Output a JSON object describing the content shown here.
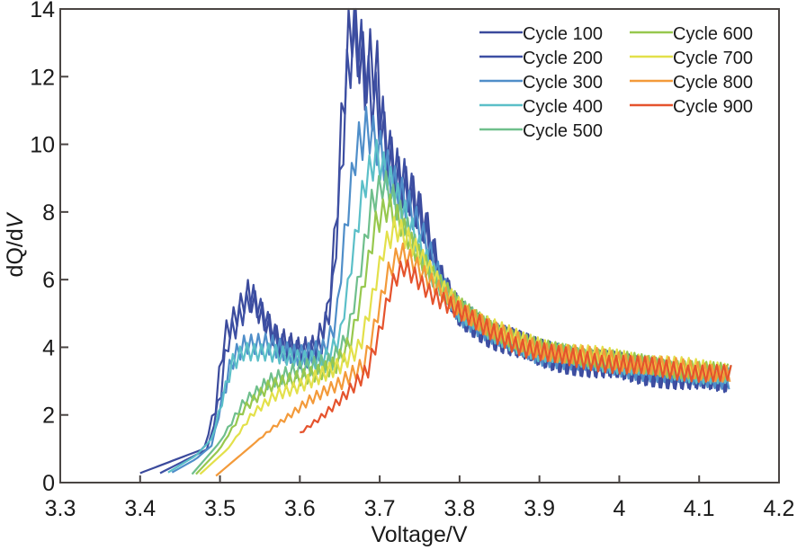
{
  "chart_data": {
    "type": "line",
    "title": "",
    "xlabel": "Voltage/V",
    "ylabel_prefix": "dQ/d",
    "ylabel_italic": "V",
    "xlim": [
      3.3,
      4.2
    ],
    "ylim": [
      0,
      14
    ],
    "xticks": [
      3.3,
      3.4,
      3.5,
      3.6,
      3.7,
      3.8,
      3.9,
      4.0,
      4.1,
      4.2
    ],
    "xtick_labels": [
      "3.3",
      "3.4",
      "3.5",
      "3.6",
      "3.7",
      "3.8",
      "3.9",
      "4",
      "4.1",
      "4.2"
    ],
    "yticks": [
      0,
      2,
      4,
      6,
      8,
      10,
      12,
      14
    ],
    "ytick_labels": [
      "0",
      "2",
      "4",
      "6",
      "8",
      "10",
      "12",
      "14"
    ],
    "grid": false,
    "legend_position": "top-right",
    "legend_columns": 2,
    "series": [
      {
        "name": "Cycle 100",
        "color": "#3b4a9c",
        "noise": 0.45,
        "points": [
          [
            3.4,
            0.28
          ],
          [
            3.48,
            1.0
          ],
          [
            3.495,
            2.3
          ],
          [
            3.505,
            4.4
          ],
          [
            3.52,
            5.0
          ],
          [
            3.535,
            5.6
          ],
          [
            3.55,
            5.0
          ],
          [
            3.57,
            4.2
          ],
          [
            3.6,
            3.9
          ],
          [
            3.62,
            4.1
          ],
          [
            3.635,
            5.0
          ],
          [
            3.645,
            7.5
          ],
          [
            3.655,
            11.5
          ],
          [
            3.665,
            13.6
          ],
          [
            3.68,
            12.0
          ],
          [
            3.695,
            12.4
          ],
          [
            3.705,
            10.2
          ],
          [
            3.72,
            9.2
          ],
          [
            3.74,
            8.6
          ],
          [
            3.76,
            7.4
          ],
          [
            3.78,
            5.8
          ],
          [
            3.8,
            5.0
          ],
          [
            3.84,
            4.4
          ],
          [
            3.9,
            3.8
          ],
          [
            4.0,
            3.4
          ],
          [
            4.1,
            3.05
          ],
          [
            4.14,
            3.0
          ]
        ]
      },
      {
        "name": "Cycle 200",
        "color": "#3d4fa3",
        "noise": 0.45,
        "points": [
          [
            3.425,
            0.28
          ],
          [
            3.485,
            1.0
          ],
          [
            3.5,
            2.6
          ],
          [
            3.51,
            4.3
          ],
          [
            3.525,
            4.9
          ],
          [
            3.54,
            5.5
          ],
          [
            3.555,
            4.8
          ],
          [
            3.575,
            4.0
          ],
          [
            3.605,
            3.8
          ],
          [
            3.625,
            4.0
          ],
          [
            3.64,
            5.4
          ],
          [
            3.65,
            8.5
          ],
          [
            3.66,
            12.0
          ],
          [
            3.67,
            13.2
          ],
          [
            3.685,
            11.6
          ],
          [
            3.7,
            11.0
          ],
          [
            3.715,
            9.6
          ],
          [
            3.735,
            8.8
          ],
          [
            3.755,
            7.6
          ],
          [
            3.775,
            6.0
          ],
          [
            3.8,
            5.0
          ],
          [
            3.84,
            4.4
          ],
          [
            3.9,
            3.8
          ],
          [
            4.0,
            3.4
          ],
          [
            4.1,
            3.05
          ],
          [
            4.14,
            3.0
          ]
        ]
      },
      {
        "name": "Cycle 300",
        "color": "#4f8ec9",
        "noise": 0.35,
        "points": [
          [
            3.44,
            0.3
          ],
          [
            3.47,
            0.7
          ],
          [
            3.49,
            1.1
          ],
          [
            3.5,
            2.2
          ],
          [
            3.515,
            3.6
          ],
          [
            3.53,
            4.0
          ],
          [
            3.56,
            4.1
          ],
          [
            3.6,
            3.8
          ],
          [
            3.63,
            3.9
          ],
          [
            3.645,
            4.6
          ],
          [
            3.655,
            7.0
          ],
          [
            3.67,
            9.8
          ],
          [
            3.685,
            10.6
          ],
          [
            3.7,
            10.0
          ],
          [
            3.715,
            9.0
          ],
          [
            3.735,
            8.2
          ],
          [
            3.755,
            7.2
          ],
          [
            3.78,
            5.8
          ],
          [
            3.8,
            5.0
          ],
          [
            3.84,
            4.4
          ],
          [
            3.9,
            3.8
          ],
          [
            4.0,
            3.45
          ],
          [
            4.1,
            3.1
          ],
          [
            4.14,
            3.05
          ]
        ]
      },
      {
        "name": "Cycle 400",
        "color": "#5bbfc8",
        "noise": 0.3,
        "points": [
          [
            3.435,
            0.3
          ],
          [
            3.47,
            0.8
          ],
          [
            3.49,
            1.3
          ],
          [
            3.505,
            2.6
          ],
          [
            3.515,
            3.5
          ],
          [
            3.53,
            3.9
          ],
          [
            3.56,
            3.9
          ],
          [
            3.6,
            3.6
          ],
          [
            3.63,
            3.6
          ],
          [
            3.65,
            4.3
          ],
          [
            3.665,
            6.6
          ],
          [
            3.68,
            8.8
          ],
          [
            3.695,
            9.6
          ],
          [
            3.71,
            9.0
          ],
          [
            3.73,
            8.0
          ],
          [
            3.75,
            7.0
          ],
          [
            3.78,
            5.8
          ],
          [
            3.8,
            5.0
          ],
          [
            3.84,
            4.4
          ],
          [
            3.9,
            3.85
          ],
          [
            4.0,
            3.5
          ],
          [
            4.1,
            3.2
          ],
          [
            4.14,
            3.15
          ]
        ]
      },
      {
        "name": "Cycle 500",
        "color": "#6fbf8c",
        "noise": 0.3,
        "points": [
          [
            3.465,
            0.25
          ],
          [
            3.5,
            1.2
          ],
          [
            3.53,
            2.4
          ],
          [
            3.56,
            3.0
          ],
          [
            3.6,
            3.3
          ],
          [
            3.64,
            3.6
          ],
          [
            3.66,
            4.4
          ],
          [
            3.675,
            6.2
          ],
          [
            3.69,
            8.2
          ],
          [
            3.705,
            8.8
          ],
          [
            3.72,
            8.2
          ],
          [
            3.74,
            7.2
          ],
          [
            3.76,
            6.3
          ],
          [
            3.79,
            5.4
          ],
          [
            3.82,
            4.8
          ],
          [
            3.86,
            4.3
          ],
          [
            3.9,
            3.9
          ],
          [
            4.0,
            3.55
          ],
          [
            4.1,
            3.25
          ],
          [
            4.14,
            3.2
          ]
        ]
      },
      {
        "name": "Cycle 600",
        "color": "#97c84e",
        "noise": 0.3,
        "points": [
          [
            3.47,
            0.25
          ],
          [
            3.5,
            1.0
          ],
          [
            3.53,
            2.2
          ],
          [
            3.56,
            2.8
          ],
          [
            3.6,
            3.1
          ],
          [
            3.645,
            3.5
          ],
          [
            3.665,
            4.2
          ],
          [
            3.68,
            5.8
          ],
          [
            3.695,
            7.6
          ],
          [
            3.71,
            8.2
          ],
          [
            3.725,
            7.8
          ],
          [
            3.745,
            6.9
          ],
          [
            3.77,
            6.0
          ],
          [
            3.8,
            5.2
          ],
          [
            3.83,
            4.7
          ],
          [
            3.87,
            4.2
          ],
          [
            3.9,
            3.95
          ],
          [
            4.0,
            3.6
          ],
          [
            4.1,
            3.3
          ],
          [
            4.14,
            3.25
          ]
        ]
      },
      {
        "name": "Cycle 700",
        "color": "#e3e04a",
        "noise": 0.3,
        "points": [
          [
            3.475,
            0.25
          ],
          [
            3.51,
            1.0
          ],
          [
            3.54,
            2.0
          ],
          [
            3.57,
            2.6
          ],
          [
            3.61,
            3.0
          ],
          [
            3.65,
            3.4
          ],
          [
            3.675,
            4.0
          ],
          [
            3.69,
            5.4
          ],
          [
            3.705,
            7.0
          ],
          [
            3.72,
            7.6
          ],
          [
            3.735,
            7.2
          ],
          [
            3.755,
            6.5
          ],
          [
            3.78,
            5.7
          ],
          [
            3.81,
            5.0
          ],
          [
            3.84,
            4.6
          ],
          [
            3.88,
            4.15
          ],
          [
            3.92,
            3.9
          ],
          [
            4.0,
            3.65
          ],
          [
            4.1,
            3.35
          ],
          [
            4.14,
            3.3
          ]
        ]
      },
      {
        "name": "Cycle 800",
        "color": "#f39a3a",
        "noise": 0.3,
        "points": [
          [
            3.495,
            0.2
          ],
          [
            3.53,
            0.9
          ],
          [
            3.57,
            1.7
          ],
          [
            3.61,
            2.4
          ],
          [
            3.65,
            2.9
          ],
          [
            3.68,
            3.5
          ],
          [
            3.695,
            4.8
          ],
          [
            3.71,
            6.2
          ],
          [
            3.725,
            6.8
          ],
          [
            3.74,
            6.5
          ],
          [
            3.76,
            6.0
          ],
          [
            3.785,
            5.5
          ],
          [
            3.81,
            5.0
          ],
          [
            3.84,
            4.5
          ],
          [
            3.88,
            4.1
          ],
          [
            3.92,
            3.85
          ],
          [
            4.0,
            3.6
          ],
          [
            4.1,
            3.3
          ],
          [
            4.14,
            3.25
          ]
        ]
      },
      {
        "name": "Cycle 900",
        "color": "#e5532d",
        "noise": 0.3,
        "points": [
          [
            3.6,
            1.45
          ],
          [
            3.63,
            2.0
          ],
          [
            3.66,
            2.7
          ],
          [
            3.685,
            3.3
          ],
          [
            3.7,
            4.4
          ],
          [
            3.715,
            5.8
          ],
          [
            3.73,
            6.4
          ],
          [
            3.745,
            6.1
          ],
          [
            3.765,
            5.6
          ],
          [
            3.79,
            5.2
          ],
          [
            3.815,
            4.8
          ],
          [
            3.845,
            4.4
          ],
          [
            3.88,
            4.0
          ],
          [
            3.92,
            3.75
          ],
          [
            4.0,
            3.5
          ],
          [
            4.1,
            3.25
          ],
          [
            4.14,
            3.2
          ]
        ]
      }
    ]
  }
}
